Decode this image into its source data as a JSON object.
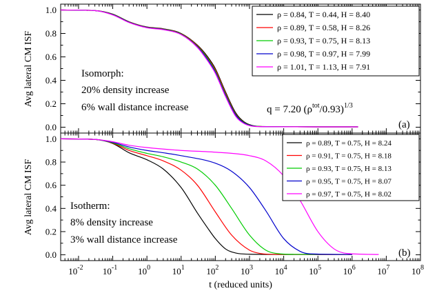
{
  "chart_data": [
    {
      "type": "line",
      "panel_label": "(a)",
      "ylabel": "Avg lateral CM ISF",
      "xlabel": "",
      "xscale": "log",
      "xlim": [
        0.003,
        100000000
      ],
      "ylim": [
        -0.05,
        1.05
      ],
      "y_ticks": [
        "0.0",
        "0.2",
        "0.4",
        "0.6",
        "0.8",
        "1.0"
      ],
      "y_tick_values": [
        0,
        0.2,
        0.4,
        0.6,
        0.8,
        1.0
      ],
      "annotations": [
        "Isomorph:",
        "20% density increase",
        "6% wall distance increase"
      ],
      "q_label": {
        "base": "q = 7.20 (ρ",
        "sup1": "tot",
        "mid": "/0.93)",
        "sup2": "1/3"
      },
      "legend_position": "top-right",
      "series": [
        {
          "name": "ρ = 0.84, T = 0.44, H = 8.40",
          "color": "#000000",
          "x": [
            0.003,
            0.03,
            0.1,
            0.3,
            1,
            3,
            10,
            30,
            60,
            100,
            200,
            400,
            700,
            1500,
            5000,
            100000,
            1500000
          ],
          "y": [
            1.0,
            0.995,
            0.965,
            0.9,
            0.855,
            0.84,
            0.8,
            0.7,
            0.6,
            0.5,
            0.3,
            0.12,
            0.045,
            0.01,
            0.004,
            0.003,
            0.003
          ]
        },
        {
          "name": "ρ = 0.89, T = 0.58, H = 8.26",
          "color": "#ff0000",
          "x": [
            0.003,
            0.03,
            0.1,
            0.3,
            1,
            3,
            10,
            30,
            60,
            100,
            200,
            400,
            700,
            1500,
            5000,
            100000,
            1500000
          ],
          "y": [
            1.0,
            0.995,
            0.963,
            0.898,
            0.853,
            0.838,
            0.797,
            0.695,
            0.59,
            0.49,
            0.29,
            0.11,
            0.04,
            0.008,
            0.004,
            0.003,
            0.003
          ]
        },
        {
          "name": "ρ = 0.93, T = 0.75, H = 8.13",
          "color": "#00cc00",
          "x": [
            0.003,
            0.03,
            0.1,
            0.3,
            1,
            3,
            10,
            30,
            60,
            100,
            200,
            400,
            700,
            1500,
            5000,
            100000,
            1500000
          ],
          "y": [
            1.0,
            0.995,
            0.962,
            0.897,
            0.852,
            0.836,
            0.795,
            0.69,
            0.585,
            0.48,
            0.28,
            0.105,
            0.038,
            0.008,
            0.004,
            0.003,
            0.003
          ]
        },
        {
          "name": "ρ = 0.98, T = 0.97, H = 7.99",
          "color": "#0000cc",
          "x": [
            0.003,
            0.03,
            0.1,
            0.3,
            1,
            3,
            10,
            30,
            60,
            100,
            200,
            400,
            700,
            1500,
            5000,
            100000,
            1500000
          ],
          "y": [
            1.0,
            0.995,
            0.96,
            0.895,
            0.85,
            0.834,
            0.792,
            0.685,
            0.575,
            0.47,
            0.27,
            0.1,
            0.035,
            0.007,
            0.004,
            0.003,
            0.003
          ]
        },
        {
          "name": "ρ = 1.01, T = 1.13, H = 7.91",
          "color": "#ff00ff",
          "x": [
            0.003,
            0.03,
            0.1,
            0.3,
            1,
            3,
            10,
            30,
            60,
            100,
            200,
            400,
            700,
            1500,
            5000,
            100000,
            1500000
          ],
          "y": [
            1.0,
            0.995,
            0.958,
            0.893,
            0.848,
            0.832,
            0.79,
            0.68,
            0.565,
            0.46,
            0.26,
            0.09,
            0.03,
            0.006,
            0.004,
            0.003,
            0.003
          ]
        }
      ]
    },
    {
      "type": "line",
      "panel_label": "(b)",
      "ylabel": "Avg lateral CM ISF",
      "xlabel": "t (reduced units)",
      "xscale": "log",
      "xlim": [
        0.003,
        100000000
      ],
      "ylim": [
        -0.05,
        1.05
      ],
      "x_ticks": [
        "10",
        "10",
        "10",
        "10",
        "10",
        "10",
        "10",
        "10",
        "10",
        "10",
        "10"
      ],
      "x_tick_exponents": [
        "-2",
        "-1",
        "0",
        "1",
        "2",
        "3",
        "4",
        "5",
        "6",
        "7",
        "8"
      ],
      "x_tick_values": [
        0.01,
        0.1,
        1,
        10,
        100,
        1000,
        10000,
        100000,
        1000000,
        10000000,
        100000000
      ],
      "y_ticks": [
        "0.0",
        "0.2",
        "0.4",
        "0.6",
        "0.8",
        "1.0"
      ],
      "y_tick_values": [
        0,
        0.2,
        0.4,
        0.6,
        0.8,
        1.0
      ],
      "annotations": [
        "Isotherm:",
        "8% density increase",
        "3% wall distance increase"
      ],
      "legend_position": "top-right",
      "series": [
        {
          "name": "ρ = 0.89, T = 0.75, H = 8.24",
          "color": "#000000",
          "x": [
            0.003,
            0.03,
            0.1,
            0.3,
            1,
            3,
            10,
            30,
            60,
            100,
            200,
            400,
            1000,
            5000,
            1000000
          ],
          "y": [
            1.0,
            0.995,
            0.96,
            0.88,
            0.82,
            0.74,
            0.58,
            0.36,
            0.23,
            0.14,
            0.05,
            0.015,
            0.005,
            0.003,
            0.003
          ]
        },
        {
          "name": "ρ = 0.91, T = 0.75, H = 8.18",
          "color": "#ff0000",
          "x": [
            0.003,
            0.03,
            0.1,
            0.3,
            1,
            3,
            10,
            30,
            100,
            300,
            1000,
            2000,
            5000,
            100000,
            1000000
          ],
          "y": [
            1.0,
            0.995,
            0.963,
            0.9,
            0.855,
            0.81,
            0.73,
            0.6,
            0.37,
            0.17,
            0.04,
            0.012,
            0.004,
            0.003,
            0.003
          ]
        },
        {
          "name": "ρ = 0.93, T = 0.75, H = 8.13",
          "color": "#00cc00",
          "x": [
            0.003,
            0.03,
            0.1,
            0.3,
            1,
            3,
            10,
            30,
            100,
            300,
            1000,
            3000,
            8000,
            20000,
            1000000
          ],
          "y": [
            1.0,
            0.995,
            0.966,
            0.915,
            0.875,
            0.845,
            0.8,
            0.74,
            0.6,
            0.4,
            0.17,
            0.04,
            0.008,
            0.004,
            0.003
          ]
        },
        {
          "name": "ρ = 0.95, T = 0.75, H = 8.07",
          "color": "#0000cc",
          "x": [
            0.003,
            0.03,
            0.1,
            0.3,
            1,
            3,
            10,
            100,
            300,
            1000,
            3000,
            10000,
            30000,
            60000,
            1000000
          ],
          "y": [
            1.0,
            0.995,
            0.97,
            0.93,
            0.9,
            0.88,
            0.855,
            0.79,
            0.72,
            0.58,
            0.38,
            0.14,
            0.03,
            0.008,
            0.003
          ]
        },
        {
          "name": "ρ = 0.97, T = 0.75, H = 8.02",
          "color": "#ff00ff",
          "x": [
            0.003,
            0.03,
            0.1,
            0.3,
            1,
            10,
            100,
            1000,
            3000,
            10000,
            30000,
            100000,
            300000,
            700000,
            6000000
          ],
          "y": [
            1.0,
            0.995,
            0.975,
            0.945,
            0.925,
            0.9,
            0.885,
            0.855,
            0.81,
            0.68,
            0.47,
            0.2,
            0.05,
            0.012,
            0.003
          ]
        }
      ]
    }
  ]
}
